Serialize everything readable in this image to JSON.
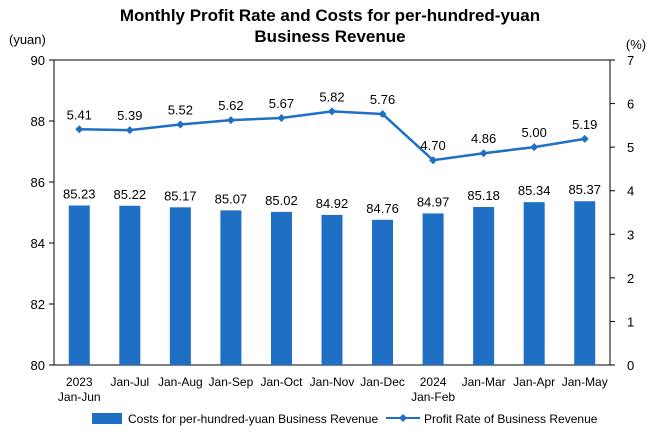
{
  "chart_data": {
    "type": "bar",
    "title": [
      "Monthly Profit Rate and Costs for per-hundred-yuan",
      "Business Revenue"
    ],
    "left_unit": "(yuan)",
    "right_unit": "(%)",
    "categories": [
      [
        "2023",
        "Jan-Jun"
      ],
      [
        "Jan-Jul"
      ],
      [
        "Jan-Aug"
      ],
      [
        "Jan-Sep"
      ],
      [
        "Jan-Oct"
      ],
      [
        "Jan-Nov"
      ],
      [
        "Jan-Dec"
      ],
      [
        "2024",
        "Jan-Feb"
      ],
      [
        "Jan-Mar"
      ],
      [
        "Jan-Apr"
      ],
      [
        "Jan-May"
      ]
    ],
    "ylim_left": [
      80,
      90
    ],
    "yticks_left": [
      80,
      82,
      84,
      86,
      88,
      90
    ],
    "ylim_right": [
      0,
      7
    ],
    "yticks_right": [
      0,
      1,
      2,
      3,
      4,
      5,
      6,
      7
    ],
    "grid": false,
    "legend_position": "bottom",
    "series": [
      {
        "name": "Costs for per-hundred-yuan Business Revenue",
        "type": "bar",
        "axis": "left",
        "color": "#1f6fc5",
        "values": [
          85.23,
          85.22,
          85.17,
          85.07,
          85.02,
          84.92,
          84.76,
          84.97,
          85.18,
          85.34,
          85.37
        ]
      },
      {
        "name": "Profit Rate of Business Revenue",
        "type": "line",
        "axis": "right",
        "color": "#1f6fc5",
        "marker": "diamond",
        "values": [
          5.41,
          5.39,
          5.52,
          5.62,
          5.67,
          5.82,
          5.76,
          4.7,
          4.86,
          5.0,
          5.19
        ]
      }
    ]
  }
}
